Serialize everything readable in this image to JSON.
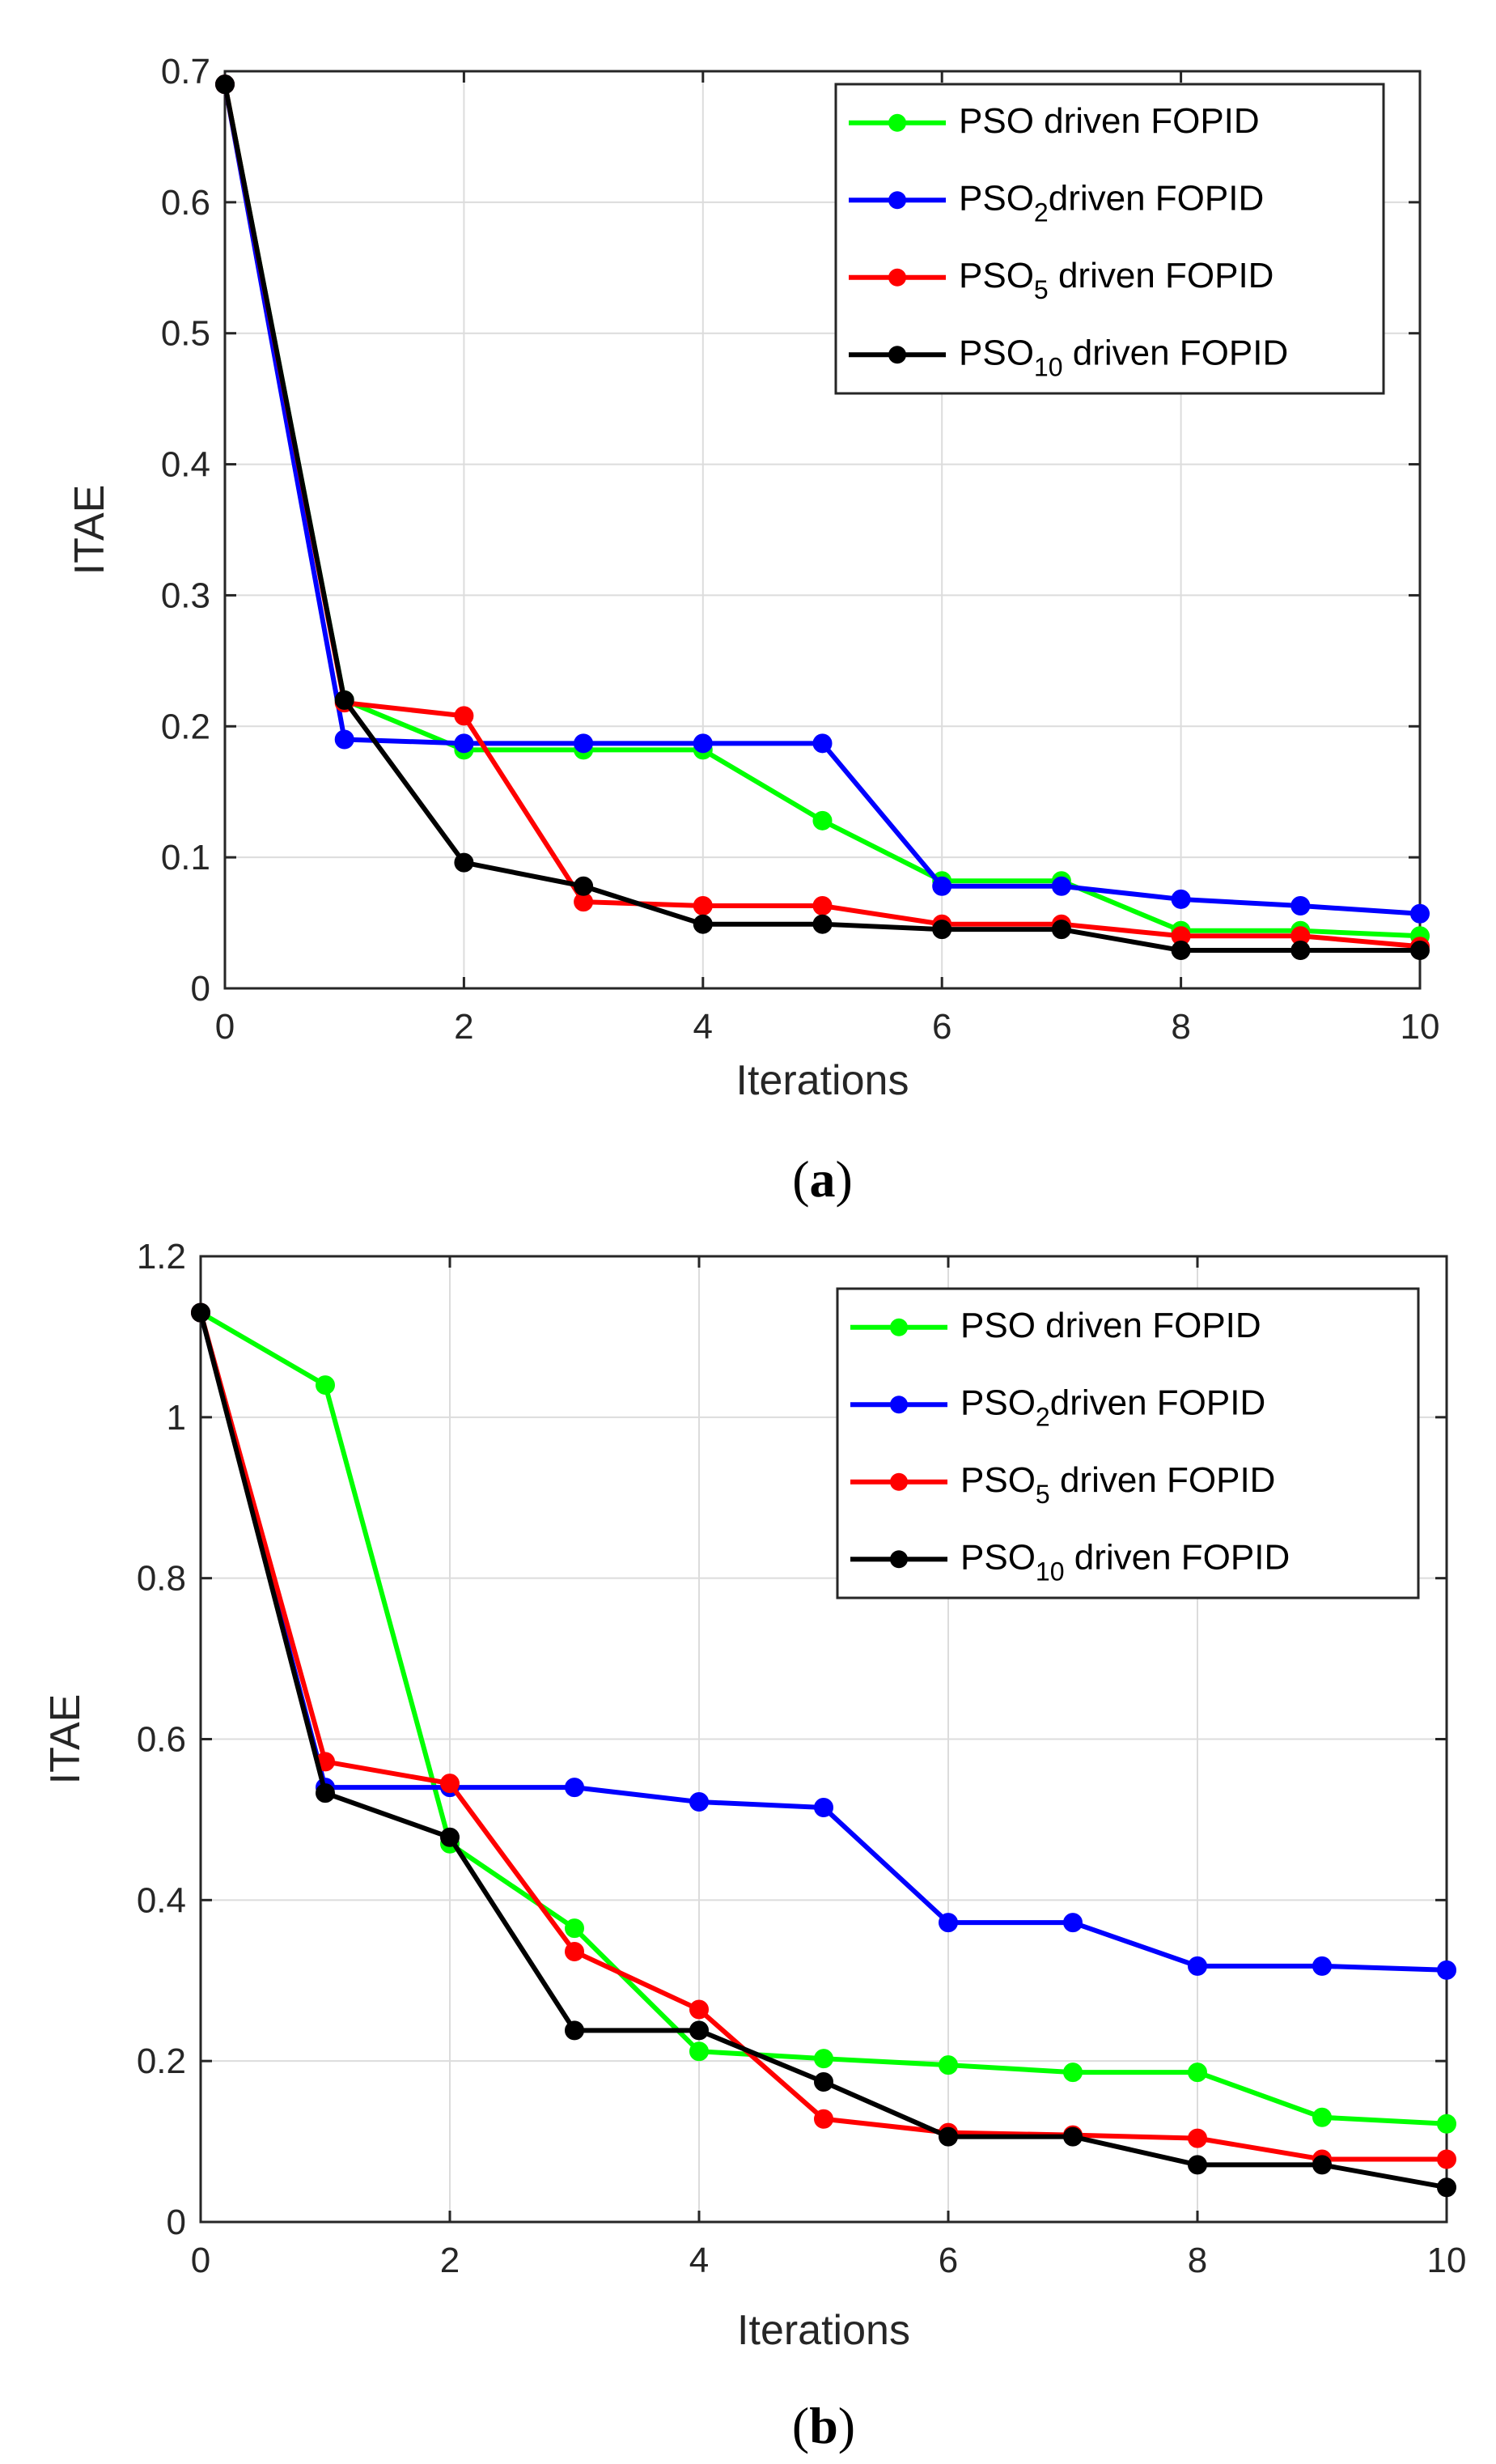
{
  "chart_data": [
    {
      "type": "line",
      "caption": {
        "open": "(",
        "letter": "a",
        "close": ")"
      },
      "xlabel": "Iterations",
      "ylabel": "ITAE",
      "xlim": [
        0,
        10
      ],
      "ylim": [
        0,
        0.7
      ],
      "grid": true,
      "legend_position": "top-right",
      "x": [
        0,
        1,
        2,
        3,
        4,
        5,
        6,
        7,
        8,
        9,
        10
      ],
      "xticks": [
        0,
        2,
        4,
        6,
        8,
        10
      ],
      "xtick_labels": [
        "0",
        "2",
        "4",
        "6",
        "8",
        "10"
      ],
      "yticks": [
        0,
        0.1,
        0.2,
        0.3,
        0.4,
        0.5,
        0.6,
        0.7
      ],
      "ytick_labels": [
        "0",
        "0.1",
        "0.2",
        "0.3",
        "0.4",
        "0.5",
        "0.6",
        "0.7"
      ],
      "series": [
        {
          "name": "PSO driven FOPID",
          "label_main": "PSO",
          "label_sub": "",
          "label_rest": " driven FOPID",
          "color": "#00ff00",
          "values": [
            0.69,
            0.22,
            0.182,
            0.182,
            0.182,
            0.128,
            0.082,
            0.082,
            0.044,
            0.044,
            0.04
          ]
        },
        {
          "name": "PSO2driven FOPID",
          "label_main": "PSO",
          "label_sub": "2",
          "label_rest": "driven FOPID",
          "color": "#0000ff",
          "values": [
            0.69,
            0.19,
            0.187,
            0.187,
            0.187,
            0.187,
            0.078,
            0.078,
            0.068,
            0.063,
            0.057
          ]
        },
        {
          "name": "PSO5 driven FOPID",
          "label_main": "PSO",
          "label_sub": "5",
          "label_rest": " driven FOPID",
          "color": "#ff0000",
          "values": [
            0.69,
            0.218,
            0.208,
            0.066,
            0.063,
            0.063,
            0.049,
            0.049,
            0.04,
            0.04,
            0.032
          ]
        },
        {
          "name": "PSO10 driven FOPID",
          "label_main": "PSO",
          "label_sub": "10",
          "label_rest": " driven FOPID",
          "color": "#000000",
          "values": [
            0.69,
            0.22,
            0.096,
            0.078,
            0.049,
            0.049,
            0.045,
            0.045,
            0.029,
            0.029,
            0.029
          ]
        }
      ]
    },
    {
      "type": "line",
      "caption": {
        "open": "(",
        "letter": "b",
        "close": ")"
      },
      "xlabel": "Iterations",
      "ylabel": "ITAE",
      "xlim": [
        0,
        10
      ],
      "ylim": [
        0,
        1.2
      ],
      "grid": true,
      "legend_position": "top-right",
      "x": [
        0,
        1,
        2,
        3,
        4,
        5,
        6,
        7,
        8,
        9,
        10
      ],
      "xticks": [
        0,
        2,
        4,
        6,
        8,
        10
      ],
      "xtick_labels": [
        "0",
        "2",
        "4",
        "6",
        "8",
        "10"
      ],
      "yticks": [
        0,
        0.2,
        0.4,
        0.6,
        0.8,
        1.0,
        1.2
      ],
      "ytick_labels": [
        "0",
        "0.2",
        "0.4",
        "0.6",
        "0.8",
        "1",
        "1.2"
      ],
      "series": [
        {
          "name": "PSO driven FOPID",
          "label_main": "PSO",
          "label_sub": "",
          "label_rest": " driven FOPID",
          "color": "#00ff00",
          "values": [
            1.13,
            1.04,
            0.47,
            0.365,
            0.212,
            0.203,
            0.195,
            0.186,
            0.186,
            0.13,
            0.122
          ]
        },
        {
          "name": "PSO2driven FOPID",
          "label_main": "PSO",
          "label_sub": "2",
          "label_rest": "driven FOPID",
          "color": "#0000ff",
          "values": [
            1.13,
            0.54,
            0.54,
            0.54,
            0.522,
            0.515,
            0.372,
            0.372,
            0.318,
            0.318,
            0.313
          ]
        },
        {
          "name": "PSO5 driven FOPID",
          "label_main": "PSO",
          "label_sub": "5",
          "label_rest": " driven FOPID",
          "color": "#ff0000",
          "values": [
            1.13,
            0.572,
            0.545,
            0.336,
            0.264,
            0.128,
            0.111,
            0.108,
            0.104,
            0.078,
            0.078
          ]
        },
        {
          "name": "PSO10 driven FOPID",
          "label_main": "PSO",
          "label_sub": "10",
          "label_rest": " driven FOPID",
          "color": "#000000",
          "values": [
            1.13,
            0.533,
            0.478,
            0.238,
            0.238,
            0.174,
            0.106,
            0.106,
            0.071,
            0.071,
            0.043
          ]
        }
      ]
    }
  ]
}
